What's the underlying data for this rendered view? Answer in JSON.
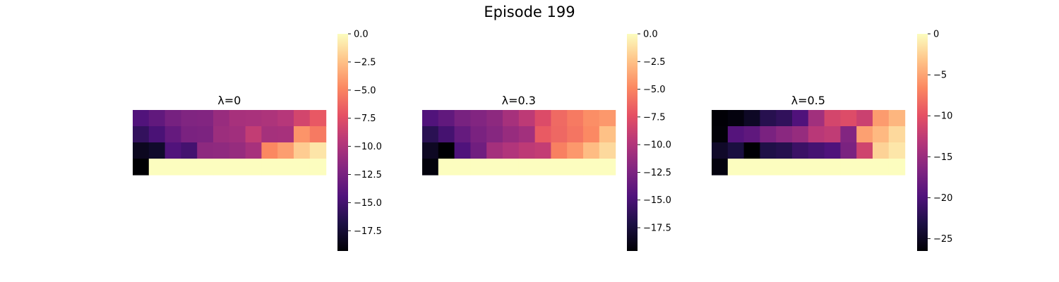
{
  "figure_title": "Episode 199",
  "chart_data": [
    {
      "type": "heatmap",
      "title": "λ=0",
      "colormap": "magma",
      "vmin": -19.3,
      "vmax": 0.0,
      "colorbar_ticks": [
        0.0,
        -2.5,
        -5.0,
        -7.5,
        -10.0,
        -12.5,
        -15.0,
        -17.5
      ],
      "colorbar_tick_labels": [
        "0.0",
        "−2.5",
        "−5.0",
        "−7.5",
        "−10.0",
        "−12.5",
        "−15.0",
        "−17.5"
      ],
      "values": [
        [
          -14.4,
          -13.6,
          -12.6,
          -12.1,
          -12.0,
          -11.0,
          -10.3,
          -10.2,
          -10.0,
          -9.6,
          -8.2,
          -6.9
        ],
        [
          -15.8,
          -14.7,
          -13.4,
          -12.4,
          -12.3,
          -10.8,
          -10.6,
          -9.0,
          -10.4,
          -10.3,
          -4.3,
          -5.4
        ],
        [
          -18.3,
          -17.8,
          -14.4,
          -15.0,
          -11.5,
          -11.4,
          -11.1,
          -10.3,
          -4.8,
          -3.9,
          -2.0,
          -1.0
        ],
        [
          -19.3,
          0.0,
          0.0,
          0.0,
          0.0,
          0.0,
          0.0,
          0.0,
          0.0,
          0.0,
          0.0,
          0.0
        ]
      ]
    },
    {
      "type": "heatmap",
      "title": "λ=0.3",
      "colormap": "magma",
      "vmin": -19.6,
      "vmax": 0.0,
      "colorbar_ticks": [
        0.0,
        -2.5,
        -5.0,
        -7.5,
        -10.0,
        -12.5,
        -15.0,
        -17.5
      ],
      "colorbar_tick_labels": [
        "0.0",
        "−2.5",
        "−5.0",
        "−7.5",
        "−10.0",
        "−12.5",
        "−15.0",
        "−17.5"
      ],
      "values": [
        [
          -14.6,
          -13.8,
          -12.7,
          -12.2,
          -11.7,
          -10.5,
          -9.4,
          -7.8,
          -6.2,
          -5.5,
          -4.6,
          -4.2
        ],
        [
          -16.5,
          -15.2,
          -13.6,
          -12.6,
          -12.0,
          -11.2,
          -10.7,
          -6.9,
          -6.3,
          -5.7,
          -4.8,
          -2.5
        ],
        [
          -18.4,
          -19.6,
          -14.7,
          -13.1,
          -10.6,
          -10.0,
          -9.4,
          -9.1,
          -5.2,
          -4.2,
          -2.7,
          -1.5
        ],
        [
          -19.3,
          0.0,
          0.0,
          0.0,
          0.0,
          0.0,
          0.0,
          0.0,
          0.0,
          0.0,
          0.0,
          0.0
        ]
      ]
    },
    {
      "type": "heatmap",
      "title": "λ=0.5",
      "colormap": "magma",
      "vmin": -26.5,
      "vmax": 0.0,
      "colorbar_ticks": [
        0,
        -5,
        -10,
        -15,
        -20,
        -25
      ],
      "colorbar_tick_labels": [
        "0",
        "−5",
        "−10",
        "−15",
        "−20",
        "−25"
      ],
      "values": [
        [
          -26.4,
          -26.0,
          -24.8,
          -22.5,
          -21.8,
          -19.8,
          -14.5,
          -11.2,
          -10.5,
          -11.8,
          -5.5,
          -4.0
        ],
        [
          -26.3,
          -19.5,
          -18.8,
          -17.0,
          -16.0,
          -15.2,
          -13.0,
          -12.5,
          -16.5,
          -5.2,
          -3.8,
          -2.0
        ],
        [
          -24.6,
          -23.4,
          -26.5,
          -23.0,
          -22.6,
          -21.2,
          -20.5,
          -19.9,
          -17.0,
          -11.5,
          -2.4,
          -1.3
        ],
        [
          -26.0,
          0.0,
          0.0,
          0.0,
          0.0,
          0.0,
          0.0,
          0.0,
          0.0,
          0.0,
          0.0,
          0.0
        ]
      ]
    }
  ]
}
